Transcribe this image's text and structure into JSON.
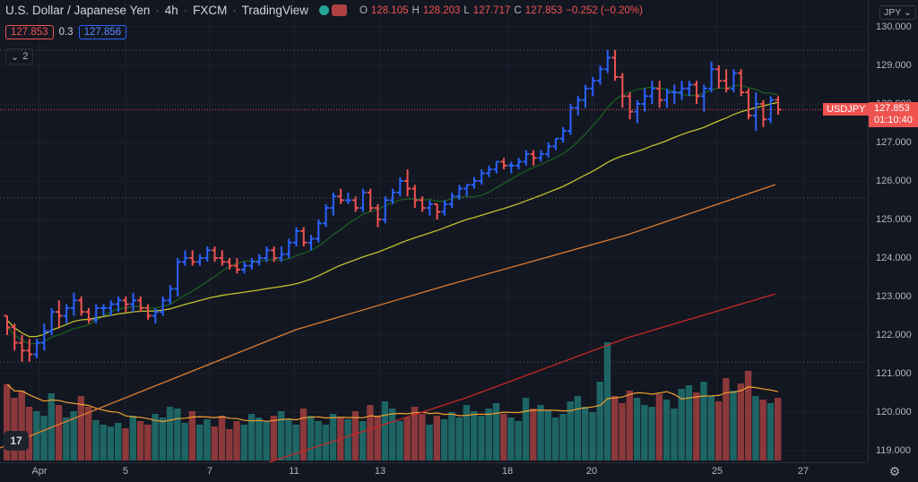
{
  "legend": {
    "symbol_name": "U.S. Dollar / Japanese Yen",
    "interval": "4h",
    "exchange": "FXCM",
    "source": "TradingView",
    "ohlc": {
      "o_label": "O",
      "o": "128.105",
      "h_label": "H",
      "h": "128.203",
      "l_label": "L",
      "l": "127.717",
      "c_label": "C",
      "c": "127.853",
      "change": "−0.252 (−0.20%)"
    }
  },
  "trade": {
    "sell": "127.853",
    "spread": "0.3",
    "buy": "127.856"
  },
  "indicators": {
    "collapse_count": "2"
  },
  "currency_button": "JPY ⌄",
  "price_label": {
    "symbol": "USDJPY",
    "price": "127.853",
    "countdown": "01:10:40"
  },
  "price_axis": {
    "ticks": [
      "130.000",
      "129.000",
      "128.000",
      "127.000",
      "126.000",
      "125.000",
      "124.000",
      "123.000",
      "122.000",
      "121.000",
      "120.000",
      "119.000"
    ]
  },
  "time_axis": {
    "ticks": [
      "Apr",
      "5",
      "7",
      "11",
      "13",
      "18",
      "20",
      "25",
      "27"
    ]
  },
  "logo": "17",
  "icons": {
    "chevron": "chevron-down-icon",
    "settings": "gear-icon"
  },
  "colors": {
    "up": "#2962ff",
    "down": "#ef5350",
    "vol_up": "#26a69a",
    "vol_down": "#ef5350",
    "ma_fast": "#1b5e20",
    "ma_mid": "#c0c22c",
    "ma_slow": "#e07c2c",
    "ma_long": "#c62828",
    "vol_ma": "#f0a030"
  },
  "chart_data": {
    "type": "ohlc-bar",
    "symbol": "USDJPY",
    "ylim": [
      118.8,
      130.3
    ],
    "bars": [
      [
        122.5,
        122.5,
        122.0,
        122.2
      ],
      [
        122.2,
        122.3,
        121.6,
        121.8
      ],
      [
        121.8,
        122.0,
        121.3,
        121.6
      ],
      [
        121.6,
        121.9,
        121.3,
        121.5
      ],
      [
        121.5,
        121.9,
        121.4,
        121.8
      ],
      [
        121.8,
        122.3,
        121.6,
        122.1
      ],
      [
        122.1,
        122.7,
        122.0,
        122.6
      ],
      [
        122.6,
        122.9,
        122.2,
        122.5
      ],
      [
        122.5,
        122.8,
        122.3,
        122.7
      ],
      [
        122.7,
        123.1,
        122.5,
        122.9
      ],
      [
        122.9,
        123.0,
        122.5,
        122.6
      ],
      [
        122.6,
        122.7,
        122.3,
        122.4
      ],
      [
        122.4,
        122.8,
        122.3,
        122.7
      ],
      [
        122.7,
        122.8,
        122.5,
        122.7
      ],
      [
        122.7,
        122.9,
        122.5,
        122.8
      ],
      [
        122.8,
        123.0,
        122.6,
        122.9
      ],
      [
        122.9,
        123.0,
        122.6,
        122.8
      ],
      [
        122.8,
        123.1,
        122.6,
        122.9
      ],
      [
        122.9,
        123.0,
        122.6,
        122.7
      ],
      [
        122.7,
        122.8,
        122.4,
        122.5
      ],
      [
        122.5,
        122.7,
        122.3,
        122.6
      ],
      [
        122.6,
        123.0,
        122.5,
        122.9
      ],
      [
        122.9,
        123.3,
        122.8,
        123.2
      ],
      [
        123.2,
        124.0,
        123.0,
        123.9
      ],
      [
        123.9,
        124.2,
        123.8,
        124.0
      ],
      [
        124.0,
        124.2,
        123.8,
        123.9
      ],
      [
        123.9,
        124.1,
        123.8,
        124.0
      ],
      [
        124.0,
        124.3,
        123.9,
        124.2
      ],
      [
        124.2,
        124.3,
        123.9,
        124.0
      ],
      [
        124.0,
        124.2,
        123.8,
        123.9
      ],
      [
        123.9,
        124.0,
        123.7,
        123.8
      ],
      [
        123.8,
        124.0,
        123.6,
        123.7
      ],
      [
        123.7,
        123.9,
        123.6,
        123.8
      ],
      [
        123.8,
        124.0,
        123.7,
        123.9
      ],
      [
        123.9,
        124.1,
        123.8,
        124.0
      ],
      [
        124.0,
        124.3,
        123.9,
        124.2
      ],
      [
        124.2,
        124.3,
        123.9,
        124.0
      ],
      [
        124.0,
        124.3,
        123.9,
        124.1
      ],
      [
        124.1,
        124.5,
        124.0,
        124.4
      ],
      [
        124.4,
        124.8,
        124.3,
        124.7
      ],
      [
        124.7,
        124.8,
        124.3,
        124.4
      ],
      [
        124.4,
        124.6,
        124.2,
        124.5
      ],
      [
        124.5,
        125.0,
        124.4,
        124.9
      ],
      [
        124.9,
        125.4,
        124.8,
        125.3
      ],
      [
        125.3,
        125.7,
        125.1,
        125.6
      ],
      [
        125.6,
        125.8,
        125.4,
        125.5
      ],
      [
        125.5,
        125.7,
        125.4,
        125.5
      ],
      [
        125.5,
        125.6,
        125.2,
        125.3
      ],
      [
        125.3,
        125.8,
        125.2,
        125.7
      ],
      [
        125.7,
        125.8,
        125.2,
        125.3
      ],
      [
        125.3,
        125.4,
        124.8,
        125.0
      ],
      [
        125.0,
        125.6,
        124.9,
        125.5
      ],
      [
        125.5,
        125.8,
        125.4,
        125.7
      ],
      [
        125.7,
        126.1,
        125.6,
        126.0
      ],
      [
        126.0,
        126.3,
        125.6,
        125.8
      ],
      [
        125.8,
        125.9,
        125.3,
        125.5
      ],
      [
        125.5,
        125.6,
        125.2,
        125.3
      ],
      [
        125.3,
        125.5,
        125.1,
        125.4
      ],
      [
        125.4,
        125.4,
        125.0,
        125.2
      ],
      [
        125.2,
        125.5,
        125.1,
        125.4
      ],
      [
        125.4,
        125.7,
        125.3,
        125.6
      ],
      [
        125.6,
        125.9,
        125.5,
        125.8
      ],
      [
        125.8,
        125.9,
        125.6,
        125.9
      ],
      [
        125.9,
        126.1,
        125.8,
        126.0
      ],
      [
        126.0,
        126.3,
        125.9,
        126.2
      ],
      [
        126.2,
        126.4,
        126.1,
        126.3
      ],
      [
        126.3,
        126.5,
        126.2,
        126.5
      ],
      [
        126.5,
        126.6,
        126.3,
        126.4
      ],
      [
        126.4,
        126.5,
        126.2,
        126.4
      ],
      [
        126.4,
        126.6,
        126.3,
        126.5
      ],
      [
        126.5,
        126.8,
        126.4,
        126.7
      ],
      [
        126.7,
        126.8,
        126.4,
        126.6
      ],
      [
        126.6,
        126.8,
        126.5,
        126.7
      ],
      [
        126.7,
        127.0,
        126.6,
        126.9
      ],
      [
        126.9,
        127.1,
        126.8,
        127.1
      ],
      [
        127.1,
        127.4,
        127.0,
        127.3
      ],
      [
        127.3,
        128.0,
        127.2,
        127.9
      ],
      [
        127.9,
        128.2,
        127.7,
        128.1
      ],
      [
        128.1,
        128.5,
        127.9,
        128.4
      ],
      [
        128.4,
        128.7,
        128.2,
        128.6
      ],
      [
        128.6,
        129.0,
        128.5,
        128.9
      ],
      [
        128.9,
        129.4,
        128.8,
        129.2
      ],
      [
        129.2,
        129.4,
        128.6,
        128.7
      ],
      [
        128.7,
        128.8,
        127.9,
        128.2
      ],
      [
        128.2,
        128.3,
        127.6,
        127.8
      ],
      [
        127.8,
        128.1,
        127.5,
        128.0
      ],
      [
        128.0,
        128.4,
        127.8,
        128.2
      ],
      [
        128.2,
        128.6,
        128.0,
        128.4
      ],
      [
        128.4,
        128.6,
        127.9,
        128.1
      ],
      [
        128.1,
        128.4,
        127.9,
        128.3
      ],
      [
        128.3,
        128.5,
        128.0,
        128.3
      ],
      [
        128.3,
        128.6,
        128.1,
        128.4
      ],
      [
        128.4,
        128.6,
        128.2,
        128.5
      ],
      [
        128.5,
        128.6,
        128.0,
        128.2
      ],
      [
        128.2,
        128.5,
        127.8,
        128.4
      ],
      [
        128.4,
        129.1,
        128.3,
        128.9
      ],
      [
        128.9,
        129.0,
        128.4,
        128.6
      ],
      [
        128.6,
        128.9,
        128.3,
        128.4
      ],
      [
        128.4,
        128.9,
        128.3,
        128.8
      ],
      [
        128.8,
        128.9,
        128.2,
        128.3
      ],
      [
        128.3,
        128.4,
        127.6,
        127.7
      ],
      [
        127.7,
        128.3,
        127.3,
        128.0
      ],
      [
        128.0,
        128.1,
        127.4,
        127.6
      ],
      [
        127.6,
        128.2,
        127.5,
        128.1
      ],
      [
        128.105,
        128.203,
        127.717,
        127.853
      ]
    ]
  }
}
